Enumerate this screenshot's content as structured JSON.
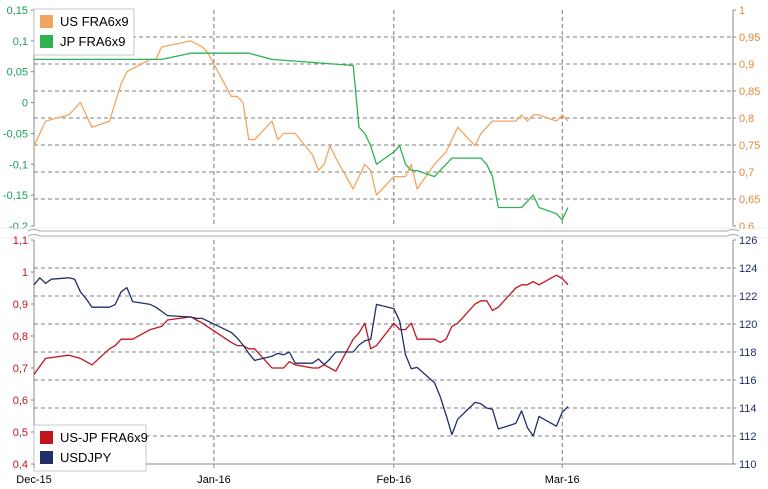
{
  "chart_data": [
    {
      "type": "line",
      "panel": "top",
      "x_ticks": [
        "Dec-15",
        "Jan-16",
        "Feb-16",
        "Mar-16"
      ],
      "left_axis": {
        "color": "#1a9e50",
        "ylim": [
          -0.2,
          0.15
        ],
        "ticks": [
          "0,15",
          "0,1",
          "0,05",
          "0",
          "-0,05",
          "-0,1",
          "-0,15",
          "-0,2"
        ]
      },
      "right_axis": {
        "color": "#e0893a",
        "ylim": [
          0.6,
          1.0
        ],
        "ticks": [
          "1",
          "0,95",
          "0,9",
          "0,85",
          "0,8",
          "0,75",
          "0,7",
          "0,65",
          "0,6"
        ]
      },
      "grid": true,
      "legend_position": "top-left",
      "series": [
        {
          "name": "US FRA6x9",
          "color": "#f4a460",
          "axis": "left",
          "x": [
            "2015-12-01",
            "2015-12-03",
            "2015-12-07",
            "2015-12-09",
            "2015-12-11",
            "2015-12-14",
            "2015-12-15",
            "2015-12-16",
            "2015-12-17",
            "2015-12-21",
            "2015-12-22",
            "2015-12-23",
            "2015-12-28",
            "2015-12-29",
            "2015-12-30",
            "2015-12-31",
            "2016-01-04",
            "2016-01-05",
            "2016-01-06",
            "2016-01-07",
            "2016-01-08",
            "2016-01-11",
            "2016-01-12",
            "2016-01-13",
            "2016-01-14",
            "2016-01-15",
            "2016-01-18",
            "2016-01-19",
            "2016-01-20",
            "2016-01-21",
            "2016-01-22",
            "2016-01-25",
            "2016-01-26",
            "2016-01-27",
            "2016-01-28",
            "2016-01-29",
            "2016-02-01",
            "2016-02-02",
            "2016-02-03",
            "2016-02-04",
            "2016-02-05",
            "2016-02-08",
            "2016-02-09",
            "2016-02-10",
            "2016-02-11",
            "2016-02-12",
            "2016-02-15",
            "2016-02-16",
            "2016-02-17",
            "2016-02-18",
            "2016-02-19",
            "2016-02-22",
            "2016-02-23",
            "2016-02-24",
            "2016-02-25",
            "2016-02-26",
            "2016-02-29",
            "2016-03-01",
            "2016-03-02"
          ],
          "y": [
            -0.07,
            -0.03,
            -0.02,
            0.0,
            -0.04,
            -0.03,
            0.0,
            0.03,
            0.05,
            0.07,
            0.07,
            0.09,
            0.1,
            0.095,
            0.09,
            0.08,
            0.01,
            0.01,
            0.0,
            -0.06,
            -0.06,
            -0.03,
            -0.06,
            -0.05,
            -0.05,
            -0.05,
            -0.085,
            -0.11,
            -0.1,
            -0.07,
            -0.09,
            -0.14,
            -0.12,
            -0.1,
            -0.11,
            -0.15,
            -0.12,
            -0.12,
            -0.12,
            -0.1,
            -0.14,
            -0.1,
            -0.09,
            -0.08,
            -0.06,
            -0.04,
            -0.07,
            -0.05,
            -0.04,
            -0.03,
            -0.03,
            -0.03,
            -0.02,
            -0.03,
            -0.02,
            -0.02,
            -0.03,
            -0.02,
            -0.03
          ]
        },
        {
          "name": "JP FRA6x9",
          "color": "#2db34f",
          "axis": "left",
          "x": [
            "2015-12-01",
            "2015-12-23",
            "2015-12-28",
            "2016-01-07",
            "2016-01-11",
            "2016-01-25",
            "2016-01-26",
            "2016-01-27",
            "2016-01-28",
            "2016-01-29",
            "2016-02-01",
            "2016-02-02",
            "2016-02-03",
            "2016-02-04",
            "2016-02-05",
            "2016-02-08",
            "2016-02-10",
            "2016-02-11",
            "2016-02-16",
            "2016-02-17",
            "2016-02-18",
            "2016-02-19",
            "2016-02-22",
            "2016-02-23",
            "2016-02-24",
            "2016-02-25",
            "2016-02-26",
            "2016-02-29",
            "2016-03-01",
            "2016-03-02"
          ],
          "y": [
            0.07,
            0.07,
            0.08,
            0.08,
            0.07,
            0.06,
            -0.04,
            -0.05,
            -0.07,
            -0.1,
            -0.08,
            -0.07,
            -0.1,
            -0.11,
            -0.11,
            -0.12,
            -0.1,
            -0.09,
            -0.09,
            -0.1,
            -0.12,
            -0.17,
            -0.17,
            -0.17,
            -0.16,
            -0.15,
            -0.17,
            -0.18,
            -0.19,
            -0.17
          ]
        }
      ]
    },
    {
      "type": "line",
      "panel": "bottom",
      "x_ticks": [
        "Dec-15",
        "Jan-16",
        "Feb-16",
        "Mar-16"
      ],
      "left_axis": {
        "color": "#c0141f",
        "ylim": [
          0.4,
          1.1
        ],
        "ticks": [
          "1,1",
          "1",
          "0,9",
          "0,8",
          "0,7",
          "0,6",
          "0,5",
          "0,4"
        ]
      },
      "right_axis": {
        "color": "#1f2f6b",
        "ylim": [
          110,
          126
        ],
        "ticks": [
          "126",
          "124",
          "122",
          "120",
          "118",
          "116",
          "114",
          "112",
          "110"
        ]
      },
      "grid": true,
      "legend_position": "bottom-left",
      "series": [
        {
          "name": "US-JP FRA6x9",
          "color": "#c0141f",
          "axis": "left",
          "x": [
            "2015-12-01",
            "2015-12-03",
            "2015-12-07",
            "2015-12-09",
            "2015-12-11",
            "2015-12-14",
            "2015-12-15",
            "2015-12-16",
            "2015-12-18",
            "2015-12-21",
            "2015-12-23",
            "2015-12-24",
            "2015-12-28",
            "2015-12-29",
            "2015-12-30",
            "2016-01-04",
            "2016-01-05",
            "2016-01-06",
            "2016-01-07",
            "2016-01-08",
            "2016-01-11",
            "2016-01-13",
            "2016-01-14",
            "2016-01-15",
            "2016-01-18",
            "2016-01-19",
            "2016-01-20",
            "2016-01-21",
            "2016-01-22",
            "2016-01-25",
            "2016-01-26",
            "2016-01-27",
            "2016-01-28",
            "2016-01-29",
            "2016-02-01",
            "2016-02-02",
            "2016-02-03",
            "2016-02-04",
            "2016-02-05",
            "2016-02-08",
            "2016-02-09",
            "2016-02-10",
            "2016-02-11",
            "2016-02-12",
            "2016-02-15",
            "2016-02-16",
            "2016-02-17",
            "2016-02-18",
            "2016-02-19",
            "2016-02-22",
            "2016-02-23",
            "2016-02-24",
            "2016-02-25",
            "2016-02-26",
            "2016-02-29",
            "2016-03-01",
            "2016-03-02"
          ],
          "y": [
            0.68,
            0.73,
            0.74,
            0.73,
            0.71,
            0.76,
            0.77,
            0.79,
            0.79,
            0.82,
            0.83,
            0.85,
            0.86,
            0.85,
            0.84,
            0.78,
            0.77,
            0.77,
            0.76,
            0.76,
            0.7,
            0.7,
            0.72,
            0.71,
            0.7,
            0.7,
            0.71,
            0.7,
            0.69,
            0.79,
            0.81,
            0.84,
            0.76,
            0.77,
            0.84,
            0.82,
            0.82,
            0.84,
            0.79,
            0.79,
            0.78,
            0.79,
            0.83,
            0.84,
            0.9,
            0.91,
            0.91,
            0.88,
            0.89,
            0.95,
            0.96,
            0.96,
            0.97,
            0.96,
            0.99,
            0.98,
            0.96
          ]
        },
        {
          "name": "USDJPY",
          "color": "#1f2f6b",
          "axis": "right",
          "x": [
            "2015-12-01",
            "2015-12-02",
            "2015-12-03",
            "2015-12-04",
            "2015-12-07",
            "2015-12-08",
            "2015-12-09",
            "2015-12-10",
            "2015-12-11",
            "2015-12-14",
            "2015-12-15",
            "2015-12-16",
            "2015-12-17",
            "2015-12-18",
            "2015-12-21",
            "2015-12-22",
            "2015-12-23",
            "2015-12-24",
            "2015-12-28",
            "2015-12-29",
            "2015-12-30",
            "2016-01-04",
            "2016-01-05",
            "2016-01-06",
            "2016-01-07",
            "2016-01-08",
            "2016-01-11",
            "2016-01-12",
            "2016-01-13",
            "2016-01-14",
            "2016-01-15",
            "2016-01-18",
            "2016-01-19",
            "2016-01-20",
            "2016-01-21",
            "2016-01-22",
            "2016-01-25",
            "2016-01-26",
            "2016-01-27",
            "2016-01-28",
            "2016-01-29",
            "2016-02-01",
            "2016-02-02",
            "2016-02-03",
            "2016-02-04",
            "2016-02-05",
            "2016-02-08",
            "2016-02-09",
            "2016-02-10",
            "2016-02-11",
            "2016-02-12",
            "2016-02-15",
            "2016-02-16",
            "2016-02-17",
            "2016-02-18",
            "2016-02-19",
            "2016-02-22",
            "2016-02-23",
            "2016-02-24",
            "2016-02-25",
            "2016-02-26",
            "2016-02-29",
            "2016-03-01",
            "2016-03-02"
          ],
          "y": [
            122.8,
            123.3,
            122.9,
            123.2,
            123.3,
            123.2,
            122.3,
            121.8,
            121.2,
            121.2,
            121.4,
            122.3,
            122.6,
            121.6,
            121.4,
            121.2,
            120.9,
            120.6,
            120.5,
            120.4,
            120.4,
            119.4,
            119.0,
            118.5,
            117.9,
            117.4,
            117.7,
            117.9,
            117.8,
            118.0,
            117.2,
            117.2,
            117.5,
            117.1,
            117.5,
            118.0,
            118.0,
            118.5,
            118.8,
            118.9,
            121.4,
            121.1,
            120.2,
            117.8,
            116.8,
            116.9,
            115.8,
            114.8,
            113.5,
            112.1,
            113.2,
            114.4,
            114.3,
            114.0,
            113.9,
            112.5,
            112.9,
            113.8,
            112.6,
            112.0,
            113.4,
            112.7,
            113.7,
            114.1
          ]
        }
      ]
    }
  ],
  "legend_top": [
    {
      "label": "US FRA6x9",
      "color": "#f4a460"
    },
    {
      "label": "JP FRA6x9",
      "color": "#2db34f"
    }
  ],
  "legend_bottom": [
    {
      "label": "US-JP FRA6x9",
      "color": "#c0141f"
    },
    {
      "label": "USDJPY",
      "color": "#1f2f6b"
    }
  ]
}
